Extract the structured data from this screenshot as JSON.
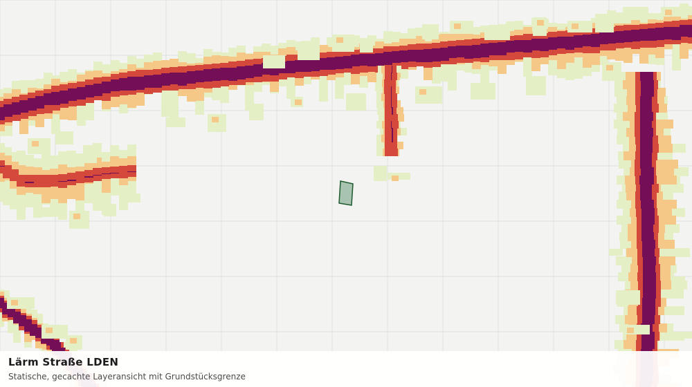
{
  "layer": {
    "title": "Lärm Straße LDEN",
    "subtitle": "Statische, gecachte Layeransicht mit Grundstücksgrenze"
  },
  "noise_classes": [
    {
      "name": "class-1",
      "color": "#e4efc6"
    },
    {
      "name": "class-2",
      "color": "#f5c887"
    },
    {
      "name": "class-3",
      "color": "#d4493c"
    },
    {
      "name": "class-4",
      "color": "#740e57"
    }
  ],
  "colors": {
    "background": "#f3f4f2",
    "grid": "#dedfdc",
    "parcel_fill": "#a8c4b1",
    "parcel_stroke": "#1d5a2e"
  },
  "icons": [
    "parcel-boundary"
  ]
}
